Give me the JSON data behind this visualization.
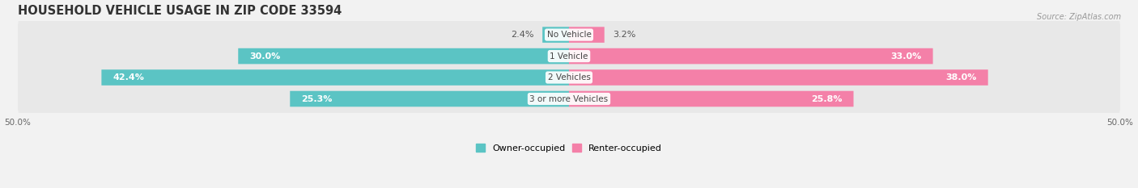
{
  "title": "HOUSEHOLD VEHICLE USAGE IN ZIP CODE 33594",
  "source": "Source: ZipAtlas.com",
  "categories": [
    "No Vehicle",
    "1 Vehicle",
    "2 Vehicles",
    "3 or more Vehicles"
  ],
  "owner_values": [
    2.4,
    30.0,
    42.4,
    25.3
  ],
  "renter_values": [
    3.2,
    33.0,
    38.0,
    25.8
  ],
  "owner_color": "#5bc4c4",
  "renter_color": "#f480a8",
  "background_color": "#f2f2f2",
  "bar_background": "#e8e8e8",
  "xlim": 50.0,
  "legend_labels": [
    "Owner-occupied",
    "Renter-occupied"
  ],
  "title_fontsize": 10.5,
  "label_fontsize": 8,
  "tick_fontsize": 7.5,
  "bar_height": 0.72,
  "category_fontsize": 7.5,
  "source_fontsize": 7
}
